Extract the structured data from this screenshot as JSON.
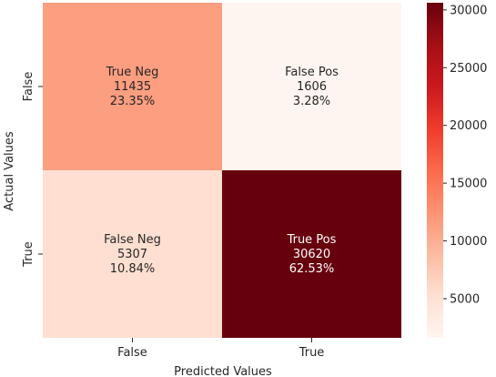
{
  "chart_data": {
    "type": "heatmap",
    "title": "",
    "xlabel": "Predicted Values",
    "ylabel": "Actual Values",
    "x_categories": [
      "False",
      "True"
    ],
    "y_categories": [
      "False",
      "True"
    ],
    "cells": [
      {
        "row": 0,
        "col": 0,
        "name": "True Neg",
        "count": "11435",
        "percent": "23.35%",
        "value": 11435
      },
      {
        "row": 0,
        "col": 1,
        "name": "False Pos",
        "count": "1606",
        "percent": "3.28%",
        "value": 1606
      },
      {
        "row": 1,
        "col": 0,
        "name": "False Neg",
        "count": "5307",
        "percent": "10.84%",
        "value": 5307
      },
      {
        "row": 1,
        "col": 1,
        "name": "True Pos",
        "count": "30620",
        "percent": "62.53%",
        "value": 30620
      }
    ],
    "colorbar": {
      "colormap": "Reds",
      "vmin": 1606,
      "vmax": 30620,
      "ticks": [
        5000,
        10000,
        15000,
        20000,
        25000,
        30000
      ],
      "tick_labels": [
        "5000",
        "10000",
        "15000",
        "20000",
        "25000",
        "30000"
      ]
    },
    "grid": false,
    "legend": "colorbar-right"
  }
}
